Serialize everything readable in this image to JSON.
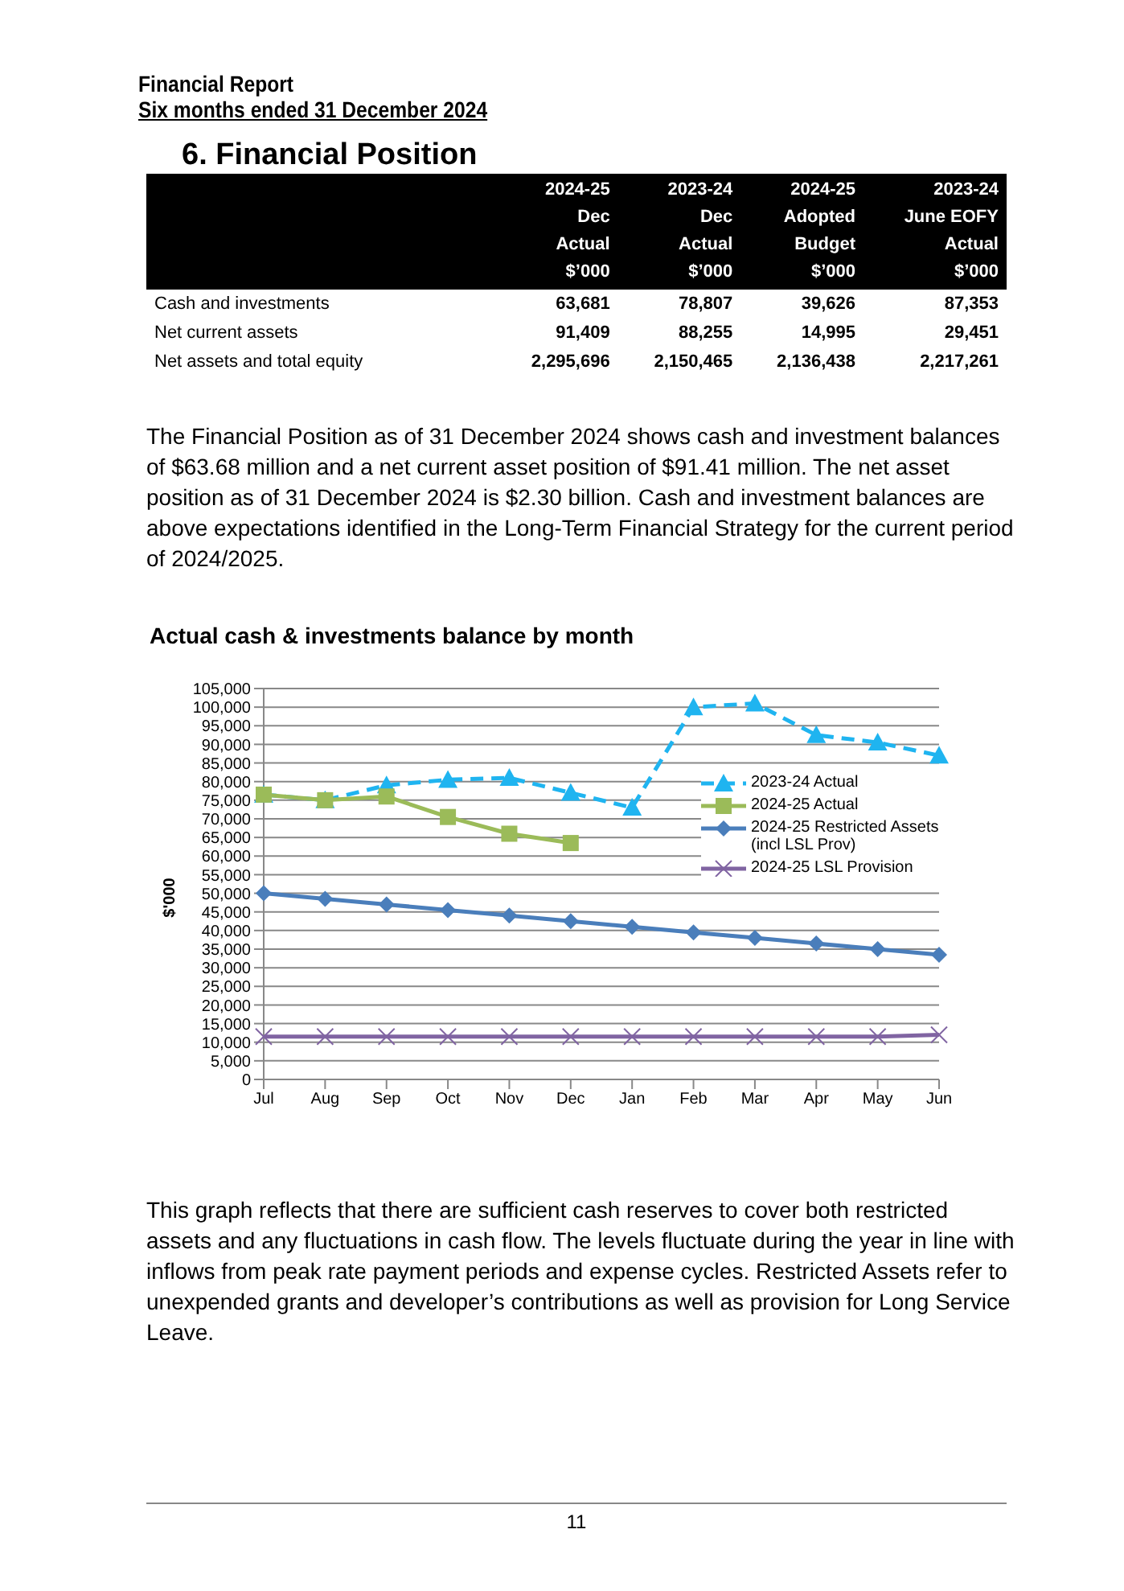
{
  "chart_data": [
    {
      "type": "other",
      "title": "Financial Report",
      "subtitle": "Six months ended 31 December 2024"
    },
    {
      "type": "other",
      "title": "6. Financial Position",
      "annotations": [
        "2024-25\nDec\nActual\n$’000",
        "2023-24\nDec\nActual\n$’000",
        "2024-25\nAdopted\nBudget\n$’000",
        "2023-24\nJune EOFY\nActual\n$’000",
        "Cash and investments",
        "63,681",
        "78,807",
        "39,626",
        "87,353",
        "Net current assets",
        "91,409",
        "88,255",
        "14,995",
        "29,451",
        "Net assets and total equity",
        "2,295,696",
        "2,150,465",
        "2,136,438",
        "2,217,261",
        "The Financial Position as of 31 December 2024 shows cash and investment balances of $63.68 million and a net current asset position of $91.41 million. The net asset position as of 31 December 2024 is $2.30 billion. Cash and investment balances are above expectations identified in the Long-Term Financial Strategy for the current period of 2024/2025."
      ]
    },
    {
      "type": "line",
      "title": "Actual cash & investments balance by month",
      "ylabel": "$'000",
      "categories": [
        "Jul",
        "Aug",
        "Sep",
        "Oct",
        "Nov",
        "Dec",
        "Jan",
        "Feb",
        "Mar",
        "Apr",
        "May",
        "Jun"
      ],
      "series": [
        {
          "name": "2023-24 Actual",
          "color": "#1fb4f0",
          "marker": "triangle",
          "line_style": "dashed",
          "values": [
            76500,
            75000,
            79000,
            80500,
            81000,
            77000,
            73000,
            100000,
            101000,
            92500,
            90500,
            87000
          ]
        },
        {
          "name": "2024-25 Actual",
          "color": "#9bbb59",
          "marker": "square",
          "line_style": "solid",
          "values": [
            76500,
            75000,
            76000,
            70500,
            66000,
            63500,
            null,
            null,
            null,
            null,
            null,
            null
          ]
        },
        {
          "name": "2024-25 Restricted Assets (incl LSL Prov)",
          "color": "#4a7ebb",
          "marker": "diamond",
          "line_style": "solid",
          "values": [
            50000,
            48500,
            47000,
            45500,
            44000,
            42500,
            41000,
            39500,
            38000,
            36500,
            35000,
            33500
          ]
        },
        {
          "name": "2024-25 LSL Provision",
          "color": "#8064a2",
          "marker": "cross",
          "line_style": "solid",
          "values": [
            11500,
            11500,
            11500,
            11500,
            11500,
            11500,
            11500,
            11500,
            11500,
            11500,
            11500,
            12000
          ]
        }
      ],
      "ylim": [
        0,
        105000
      ],
      "yticks": [
        0,
        {
          "value": 5000,
          "label": "5,000"
        },
        {
          "value": 10000,
          "label": "10,000"
        },
        {
          "value": 15000,
          "label": "15,000"
        },
        {
          "value": 20000,
          "label": "20,000"
        },
        {
          "value": 25000,
          "label": "25,000"
        },
        {
          "value": 30000,
          "label": "30,000"
        },
        {
          "value": 35000,
          "label": "35,000"
        },
        {
          "value": 40000,
          "label": "40,000"
        },
        {
          "value": 45000,
          "label": "45,000"
        },
        {
          "value": 50000,
          "label": "50,000"
        },
        {
          "value": 55000,
          "label": "55,000"
        },
        {
          "value": 60000,
          "label": "60,000"
        },
        {
          "value": 65000,
          "label": "65,000"
        },
        {
          "value": 70000,
          "label": "70,000"
        },
        {
          "value": 75000,
          "label": "75,000"
        },
        {
          "value": 80000,
          "label": "80,000"
        },
        {
          "value": 85000,
          "label": "85,000"
        },
        {
          "value": 90000,
          "label": "90,000"
        },
        {
          "value": 95000,
          "label": "95,000"
        },
        {
          "value": 100000,
          "label": "100,000"
        },
        {
          "value": 105000,
          "label": "105,000"
        }
      ],
      "grid": "y",
      "legend": "right",
      "annotations": [
        "This graph reflects that there are sufficient cash reserves to cover both restricted assets and any fluctuations in cash flow. The levels fluctuate during the year in line with inflows from peak rate payment periods and expense cycles. Restricted Assets refer to unexpended grants and developer’s contributions as well as provision for Long Service Leave.",
        "11"
      ]
    }
  ]
}
